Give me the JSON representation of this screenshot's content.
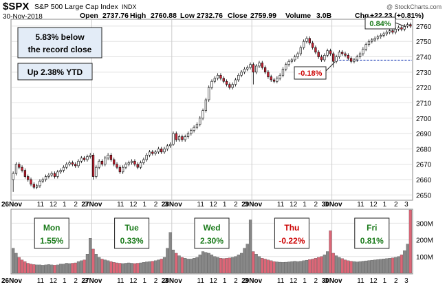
{
  "header": {
    "symbol": "$SPX",
    "name": "S&P 500 Large Cap Index",
    "exchange": "INDX",
    "date": "30-Nov-2018",
    "open_label": "Open",
    "open": "2737.76",
    "high_label": "High",
    "high": "2760.88",
    "low_label": "Low",
    "low": "2732.76",
    "close_label": "Close",
    "close": "2759.99",
    "volume_label": "Volume",
    "volume": "3.0B",
    "chg_label": "Chg",
    "chg": "+22.23 (+0.81%)",
    "credit": "@ StockCharts.com"
  },
  "callouts": {
    "record": "5.83% below\nthe record close",
    "ytd": "Up 2.38% YTD",
    "up_pct": "0.84%",
    "down_pct": "-0.18%"
  },
  "day_boxes": [
    {
      "day": "Mon",
      "pct": "1.55%",
      "color": "#1a7a1a"
    },
    {
      "day": "Tue",
      "pct": "0.33%",
      "color": "#1a7a1a"
    },
    {
      "day": "Wed",
      "pct": "2.30%",
      "color": "#1a7a1a"
    },
    {
      "day": "Thu",
      "pct": "-0.22%",
      "color": "#cc0000"
    },
    {
      "day": "Fri",
      "pct": "0.81%",
      "color": "#1a7a1a"
    }
  ],
  "x_axis_labels": [
    [
      "26Nov",
      "11",
      "12",
      "1",
      "2",
      "3"
    ],
    [
      "27Nov",
      "11",
      "12",
      "1",
      "2",
      "3"
    ],
    [
      "28Nov",
      "11",
      "12",
      "1",
      "2",
      "3"
    ],
    [
      "29Nov",
      "11",
      "12",
      "1",
      "2",
      "3"
    ],
    [
      "30Nov",
      "11",
      "12",
      "1",
      "2",
      "3"
    ]
  ],
  "chart_data": {
    "type": "candlestick",
    "price_ticks": [
      2650,
      2660,
      2670,
      2680,
      2690,
      2700,
      2710,
      2720,
      2730,
      2740,
      2750,
      2760
    ],
    "price_range": [
      2647,
      2764
    ],
    "volume_ticks": [
      "100M",
      "200M",
      "300M"
    ],
    "volume_tick_values": [
      100,
      200,
      300
    ],
    "volume_range": [
      0,
      380
    ],
    "reference_level": 2737.8,
    "colors": {
      "up": "#ffffff",
      "down": "#cc2233",
      "volume_up": "#888888",
      "volume_down": "#dd6677",
      "ref_line": "#1a3ab5"
    },
    "days": [
      {
        "label": "26Nov",
        "closes": [
          2664,
          2670,
          2668,
          2666,
          2662,
          2660,
          2657,
          2655,
          2656,
          2659,
          2660,
          2662,
          2663,
          2664,
          2662,
          2665,
          2666,
          2668,
          2670,
          2671,
          2670,
          2669,
          2672,
          2674,
          2673,
          2675,
          2676
        ],
        "first_low": 2652,
        "volumes": [
          150,
          120,
          95,
          80,
          70,
          60,
          55,
          52,
          50,
          50,
          48,
          50,
          52,
          50,
          48,
          50,
          55,
          55,
          60,
          58,
          60,
          62,
          70,
          75,
          80,
          115,
          210
        ]
      },
      {
        "label": "27Nov",
        "closes": [
          2662,
          2668,
          2672,
          2670,
          2674,
          2676,
          2673,
          2670,
          2668,
          2665,
          2668,
          2670,
          2671,
          2672,
          2670,
          2668,
          2671,
          2673,
          2676,
          2678,
          2677,
          2678,
          2680,
          2678,
          2680,
          2682,
          2683
        ],
        "first_low": 2660,
        "volumes": [
          145,
          115,
          95,
          85,
          80,
          75,
          70,
          65,
          62,
          60,
          58,
          60,
          62,
          60,
          58,
          60,
          62,
          65,
          68,
          70,
          72,
          75,
          80,
          85,
          95,
          150,
          245
        ]
      },
      {
        "label": "28Nov",
        "closes": [
          2690,
          2686,
          2688,
          2686,
          2688,
          2690,
          2692,
          2694,
          2696,
          2700,
          2705,
          2712,
          2720,
          2724,
          2726,
          2728,
          2726,
          2724,
          2722,
          2720,
          2722,
          2725,
          2728,
          2730,
          2732,
          2733,
          2735
        ],
        "first_low": 2683,
        "volumes": [
          140,
          120,
          105,
          95,
          90,
          85,
          85,
          90,
          95,
          110,
          130,
          125,
          120,
          110,
          100,
          95,
          90,
          88,
          90,
          92,
          95,
          100,
          110,
          120,
          150,
          175,
          320
        ]
      },
      {
        "label": "29Nov",
        "closes": [
          2730,
          2734,
          2736,
          2733,
          2730,
          2727,
          2725,
          2724,
          2726,
          2728,
          2732,
          2735,
          2737,
          2738,
          2740,
          2742,
          2746,
          2750,
          2752,
          2749,
          2746,
          2743,
          2740,
          2738,
          2741,
          2744,
          2742
        ],
        "first_low": 2722,
        "volumes": [
          130,
          115,
          100,
          90,
          85,
          80,
          75,
          70,
          68,
          66,
          65,
          66,
          68,
          70,
          72,
          70,
          72,
          75,
          78,
          82,
          85,
          90,
          95,
          100,
          110,
          130,
          255
        ]
      },
      {
        "label": "30Nov",
        "closes": [
          2737,
          2740,
          2743,
          2742,
          2741,
          2739,
          2737,
          2738,
          2740,
          2742,
          2745,
          2748,
          2750,
          2751,
          2752,
          2753,
          2754,
          2755,
          2756,
          2757,
          2756,
          2758,
          2759,
          2758,
          2760,
          2761,
          2760
        ],
        "first_low": 2733,
        "volumes": [
          120,
          105,
          95,
          88,
          80,
          75,
          72,
          70,
          68,
          70,
          72,
          74,
          76,
          78,
          80,
          82,
          84,
          86,
          88,
          90,
          92,
          95,
          100,
          110,
          135,
          175,
          380
        ]
      }
    ]
  }
}
